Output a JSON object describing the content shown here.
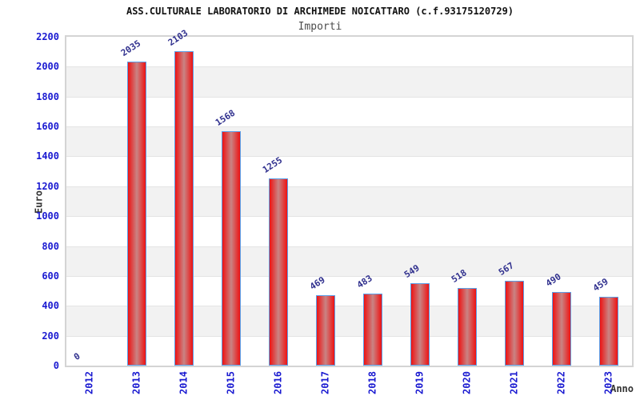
{
  "chart_data": {
    "type": "bar",
    "title": "ASS.CULTURALE LABORATORIO DI ARCHIMEDE NOICATTARO (c.f.93175120729)",
    "subtitle": "Importi",
    "categories": [
      "2012",
      "2013",
      "2014",
      "2015",
      "2016",
      "2017",
      "2018",
      "2019",
      "2020",
      "2021",
      "2022",
      "2023"
    ],
    "values": [
      0,
      2035,
      2103,
      1568,
      1255,
      469,
      483,
      549,
      518,
      567,
      490,
      459
    ],
    "xlabel": "Anno",
    "ylabel": "Euro",
    "ylim": [
      0,
      2200
    ],
    "ytick_step": 200,
    "grid": "horizontal-alternating-bands",
    "legend": "none",
    "colors": {
      "bar_edge": "#ee1212",
      "bar_mid": "#c98484",
      "bar_border": "#5b9fe8",
      "tick_label": "#1a1ad1",
      "value_label": "#30308e",
      "band_gray": "#f2f2f2",
      "plot_border": "#d4d4d4",
      "axis_title": "#333333",
      "title": "#111111",
      "subtitle": "#4d4d4d"
    }
  }
}
